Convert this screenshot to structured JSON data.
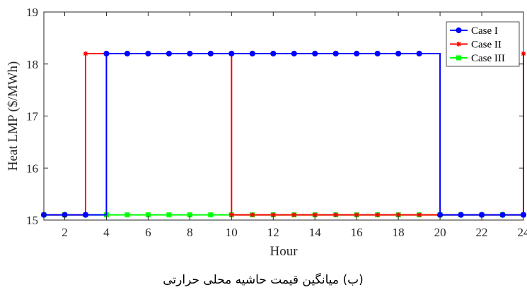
{
  "chart_data": {
    "type": "line",
    "step": true,
    "title": "",
    "xlabel": "Hour",
    "ylabel": "Heat LMP ($/MWh)",
    "xlim": [
      1,
      24
    ],
    "ylim": [
      15,
      19
    ],
    "xticks": [
      2,
      4,
      6,
      8,
      10,
      12,
      14,
      16,
      18,
      20,
      22,
      24
    ],
    "yticks": [
      15,
      16,
      17,
      18,
      19
    ],
    "grid": false,
    "legend_position": "top-right",
    "x": [
      1,
      2,
      3,
      4,
      5,
      6,
      7,
      8,
      9,
      10,
      11,
      12,
      13,
      14,
      15,
      16,
      17,
      18,
      19,
      20,
      21,
      22,
      23,
      24
    ],
    "series": [
      {
        "name": "Case I",
        "color": "#0000ff",
        "marker": "circle",
        "values": [
          15.1,
          15.1,
          15.1,
          18.2,
          18.2,
          18.2,
          18.2,
          18.2,
          18.2,
          18.2,
          18.2,
          18.2,
          18.2,
          18.2,
          18.2,
          18.2,
          18.2,
          18.2,
          18.2,
          15.1,
          15.1,
          15.1,
          15.1,
          15.1
        ]
      },
      {
        "name": "Case II",
        "color": "#ff0000",
        "marker": "star",
        "values": [
          15.1,
          15.1,
          18.2,
          18.2,
          18.2,
          18.2,
          18.2,
          18.2,
          18.2,
          15.1,
          15.1,
          15.1,
          15.1,
          15.1,
          15.1,
          15.1,
          15.1,
          15.1,
          15.1,
          15.1,
          15.1,
          15.1,
          15.1,
          18.2
        ]
      },
      {
        "name": "Case III",
        "color": "#00ff00",
        "marker": "square",
        "values": [
          15.1,
          15.1,
          15.1,
          15.1,
          15.1,
          15.1,
          15.1,
          15.1,
          15.1,
          15.1,
          15.1,
          15.1,
          15.1,
          15.1,
          15.1,
          15.1,
          15.1,
          15.1,
          15.1,
          15.1,
          15.1,
          15.1,
          15.1,
          15.1
        ]
      }
    ]
  },
  "caption": "(ب) میانگین قیمت حاشیه محلی حرارتی"
}
